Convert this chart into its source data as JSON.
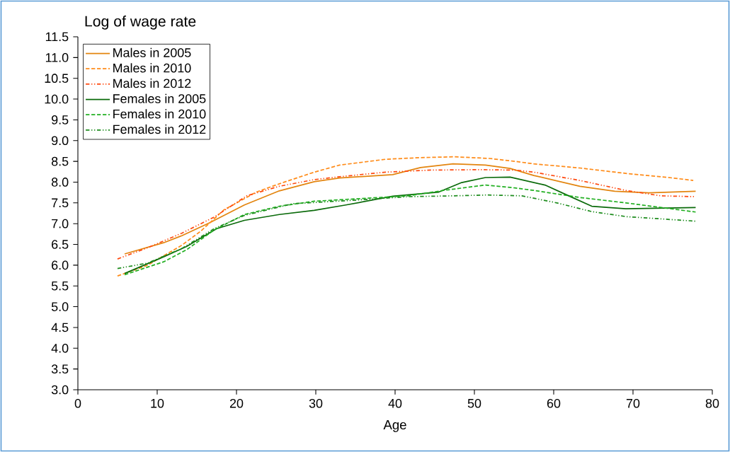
{
  "chart_data": {
    "type": "line",
    "ylabel": "Log of wage rate",
    "xlabel": "Age",
    "xlim": [
      0,
      80
    ],
    "xticks": [
      0,
      10,
      20,
      30,
      40,
      50,
      60,
      70,
      80
    ],
    "ylim": [
      3.0,
      11.5
    ],
    "yticks": [
      {
        "value": 3.0,
        "label": "3.0"
      },
      {
        "value": 3.5,
        "label": "3.5"
      },
      {
        "value": 4.0,
        "label": "4.0"
      },
      {
        "value": 4.5,
        "label": "4.5"
      },
      {
        "value": 5.0,
        "label": "5.0"
      },
      {
        "value": 5.5,
        "label": "5.5"
      },
      {
        "value": 6.0,
        "label": "6.0"
      },
      {
        "value": 6.5,
        "label": "6.5"
      },
      {
        "value": 7.0,
        "label": "7.0"
      },
      {
        "value": 7.5,
        "label": "7.5"
      },
      {
        "value": 8.0,
        "label": "8.0"
      },
      {
        "value": 8.5,
        "label": "8.5"
      },
      {
        "value": 9.0,
        "label": "9.0"
      },
      {
        "value": 9.5,
        "label": "9.5"
      },
      {
        "value": 10.0,
        "label": "10.0"
      },
      {
        "value": 10.5,
        "label": "10.5"
      },
      {
        "value": 11.0,
        "label": "11.0"
      },
      {
        "value": 11.5,
        "label": "11.5"
      }
    ],
    "legend": "top left",
    "grid": false,
    "series": [
      {
        "name": "Males in 2005",
        "color": "#e3850f",
        "line_style": "solid",
        "x": [
          5.9,
          10.8,
          13.1,
          16.6,
          21.0,
          25.4,
          29.8,
          33.0,
          39.7,
          43.2,
          47.3,
          51.4,
          54.5,
          57.5,
          63.3,
          67.7,
          72.0,
          77.9
        ],
        "values": [
          6.27,
          6.54,
          6.71,
          7.02,
          7.45,
          7.79,
          8.01,
          8.1,
          8.18,
          8.35,
          8.44,
          8.41,
          8.33,
          8.16,
          7.9,
          7.78,
          7.74,
          7.78
        ]
      },
      {
        "name": "Males in 2010",
        "color": "#ff8c1a",
        "line_style": "dashed",
        "x": [
          5.0,
          8.8,
          13.1,
          15.5,
          18.4,
          22.5,
          25.4,
          29.8,
          33.0,
          38.8,
          43.2,
          47.5,
          51.9,
          55.1,
          57.5,
          63.3,
          69.1,
          75.0,
          77.6
        ],
        "values": [
          5.74,
          6.0,
          6.48,
          6.82,
          7.33,
          7.76,
          7.96,
          8.24,
          8.41,
          8.55,
          8.59,
          8.61,
          8.57,
          8.5,
          8.44,
          8.34,
          8.21,
          8.1,
          8.04
        ]
      },
      {
        "name": "Males in 2012",
        "color": "#ff4a10",
        "line_style": "dashdot",
        "x": [
          5.0,
          8.8,
          13.1,
          17.2,
          21.3,
          25.4,
          29.8,
          33.0,
          38.8,
          44.6,
          50.5,
          55.1,
          57.5,
          63.3,
          69.1,
          73.5,
          77.9
        ],
        "values": [
          6.15,
          6.42,
          6.77,
          7.16,
          7.67,
          7.9,
          8.06,
          8.13,
          8.24,
          8.29,
          8.3,
          8.29,
          8.24,
          8.04,
          7.8,
          7.67,
          7.65
        ]
      },
      {
        "name": "Females in 2005",
        "color": "#0a6a0a",
        "line_style": "solid",
        "x": [
          5.9,
          10.8,
          13.7,
          17.5,
          21.0,
          25.4,
          29.8,
          33.8,
          39.7,
          45.5,
          48.4,
          51.4,
          54.5,
          58.9,
          61.9,
          64.8,
          69.1,
          77.9
        ],
        "values": [
          5.8,
          6.2,
          6.45,
          6.88,
          7.08,
          7.22,
          7.32,
          7.45,
          7.66,
          7.76,
          7.99,
          8.11,
          8.12,
          7.93,
          7.67,
          7.42,
          7.36,
          7.39
        ]
      },
      {
        "name": "Females in 2010",
        "color": "#22b022",
        "line_style": "dashed",
        "x": [
          5.9,
          10.8,
          13.7,
          17.2,
          21.0,
          25.4,
          29.8,
          34.4,
          41.7,
          46.1,
          51.4,
          55.1,
          57.5,
          63.3,
          69.1,
          73.5,
          77.9
        ],
        "values": [
          5.77,
          6.08,
          6.37,
          6.85,
          7.22,
          7.42,
          7.54,
          7.59,
          7.67,
          7.8,
          7.93,
          7.86,
          7.8,
          7.63,
          7.5,
          7.39,
          7.28
        ]
      },
      {
        "name": "Females in 2012",
        "color": "#1e8c1e",
        "line_style": "dashdot",
        "x": [
          5.0,
          8.8,
          13.1,
          17.2,
          21.0,
          27.1,
          34.4,
          41.7,
          47.5,
          51.6,
          56.0,
          60.4,
          64.8,
          69.1,
          77.9
        ],
        "values": [
          5.92,
          6.05,
          6.4,
          6.88,
          7.2,
          7.48,
          7.56,
          7.65,
          7.67,
          7.69,
          7.67,
          7.5,
          7.29,
          7.17,
          7.06
        ]
      }
    ]
  }
}
